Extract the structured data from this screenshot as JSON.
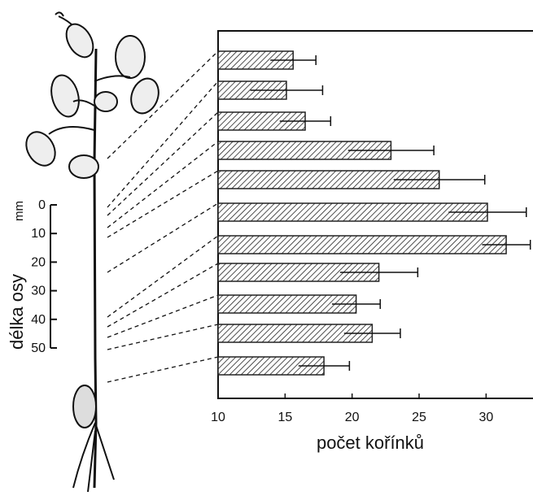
{
  "chart_data": {
    "type": "bar",
    "orientation": "horizontal",
    "categories": [
      null,
      null,
      null,
      null,
      null,
      null,
      null,
      null,
      null,
      null,
      null
    ],
    "values": [
      15.6,
      15.1,
      16.5,
      22.9,
      26.5,
      30.1,
      31.5,
      22.0,
      20.3,
      21.5,
      17.9
    ],
    "errors": [
      1.7,
      2.7,
      1.9,
      3.2,
      3.4,
      2.9,
      1.8,
      2.9,
      1.8,
      2.1,
      1.9
    ],
    "color": "#222222",
    "xlim": [
      10,
      33.5
    ],
    "xticks": [
      10,
      15,
      20,
      25,
      30
    ],
    "x_label": "počet kořínků",
    "axis_length": {
      "label": "délka osy",
      "unit": "mm",
      "ylim": [
        0,
        50
      ],
      "yticks": [
        0,
        10,
        20,
        30,
        40,
        50
      ]
    }
  }
}
